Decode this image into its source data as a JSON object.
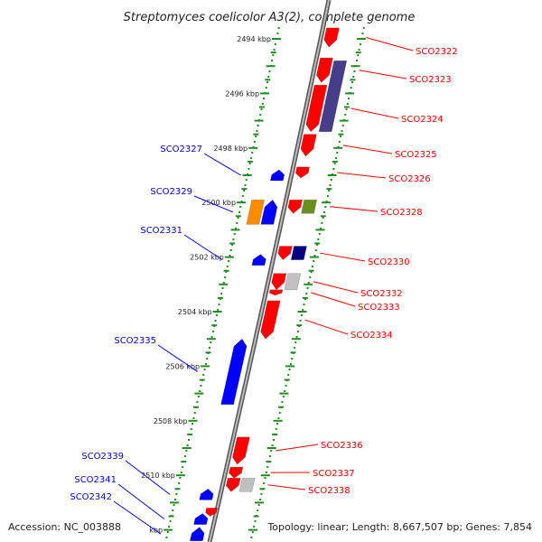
{
  "title": "Streptomyces coelicolor A3(2), complete genome",
  "footer": {
    "accession": "Accession: NC_003888",
    "stats": "Topology: linear; Length: 8,667,507 bp; Genes: 7,854"
  },
  "colors": {
    "forward": "#ff0000",
    "reverse": "#0000ff",
    "backbone": "#888888",
    "ticks": "#228b22",
    "orange": "#ff8c00",
    "olive": "#6b8e23",
    "navy": "#000080",
    "slate": "#483d8b",
    "gray": "#c0c0c0"
  },
  "scale_labels": [
    {
      "text": "2494 kbp",
      "pos": 2494
    },
    {
      "text": "2496 kbp",
      "pos": 2496
    },
    {
      "text": "2498 kbp",
      "pos": 2498
    },
    {
      "text": "2500 kbp",
      "pos": 2500
    },
    {
      "text": "2502 kbp",
      "pos": 2502
    },
    {
      "text": "2504 kbp",
      "pos": 2504
    },
    {
      "text": "2506 kbp",
      "pos": 2506
    },
    {
      "text": "2508 kbp",
      "pos": 2508
    },
    {
      "text": "2510 kbp",
      "pos": 2510
    },
    {
      "text": "kbp",
      "pos": 2512
    }
  ],
  "genes_forward": [
    {
      "name": "SCO2322",
      "start": 2493.6,
      "end": 2494.3,
      "track": 0,
      "color": "forward"
    },
    {
      "name": "SCO2323",
      "start": 2494.7,
      "end": 2495.6,
      "track": 0,
      "color": "forward"
    },
    {
      "name": "SCO2324",
      "start": 2495.7,
      "end": 2497.4,
      "track": 0,
      "color": "forward"
    },
    {
      "name": "SCO2325",
      "start": 2497.5,
      "end": 2498.3,
      "track": 0,
      "color": "forward"
    },
    {
      "name": "SCO2326",
      "start": 2498.7,
      "end": 2499.1,
      "track": 0,
      "color": "forward"
    },
    {
      "name": "SCO2328",
      "start": 2499.9,
      "end": 2500.4,
      "track": 0,
      "color": "forward"
    },
    {
      "name": "SCO2330",
      "start": 2501.6,
      "end": 2502.1,
      "track": 0,
      "color": "forward"
    },
    {
      "name": "SCO2332",
      "start": 2502.6,
      "end": 2503.2,
      "track": 0,
      "color": "forward"
    },
    {
      "name": "SCO2333",
      "start": 2503.2,
      "end": 2503.4,
      "track": 0,
      "color": "forward"
    },
    {
      "name": "SCO2334",
      "start": 2503.6,
      "end": 2505.0,
      "track": 0,
      "color": "forward"
    },
    {
      "name": "SCO2336",
      "start": 2508.6,
      "end": 2509.6,
      "track": 0,
      "color": "forward"
    },
    {
      "name": "SCO2337",
      "start": 2509.7,
      "end": 2510.1,
      "track": 0,
      "color": "forward"
    },
    {
      "name": "SCO2338",
      "start": 2510.1,
      "end": 2510.6,
      "track": 0,
      "color": "forward"
    }
  ],
  "features_forward_outer": [
    {
      "start": 2494.8,
      "end": 2497.4,
      "color": "slate"
    },
    {
      "start": 2499.9,
      "end": 2500.4,
      "color": "olive"
    },
    {
      "start": 2501.6,
      "end": 2502.1,
      "color": "navy"
    },
    {
      "start": 2502.6,
      "end": 2503.2,
      "color": "gray"
    },
    {
      "start": 2510.1,
      "end": 2510.6,
      "color": "gray"
    }
  ],
  "genes_reverse": [
    {
      "name": "SCO2327",
      "start": 2498.8,
      "end": 2499.2,
      "color": "reverse"
    },
    {
      "name": "SCO2329",
      "start": 2499.9,
      "end": 2500.8,
      "color": "reverse"
    },
    {
      "name": "SCO2331",
      "start": 2501.9,
      "end": 2502.3,
      "color": "reverse"
    },
    {
      "name": "SCO2335",
      "start": 2505.0,
      "end": 2507.4,
      "color": "reverse"
    },
    {
      "name": "SCO2339",
      "start": 2510.5,
      "end": 2510.9,
      "color": "reverse"
    },
    {
      "name": "SCO2341",
      "start": 2511.4,
      "end": 2511.8,
      "color": "reverse"
    },
    {
      "name": "SCO2342",
      "start": 2511.9,
      "end": 2512.4,
      "color": "reverse"
    }
  ],
  "features_reverse_outer": [
    {
      "start": 2499.9,
      "end": 2500.8,
      "color": "orange"
    }
  ],
  "small_forward_near_backbone": [
    {
      "start": 2511.2,
      "end": 2511.5,
      "color": "forward"
    }
  ]
}
